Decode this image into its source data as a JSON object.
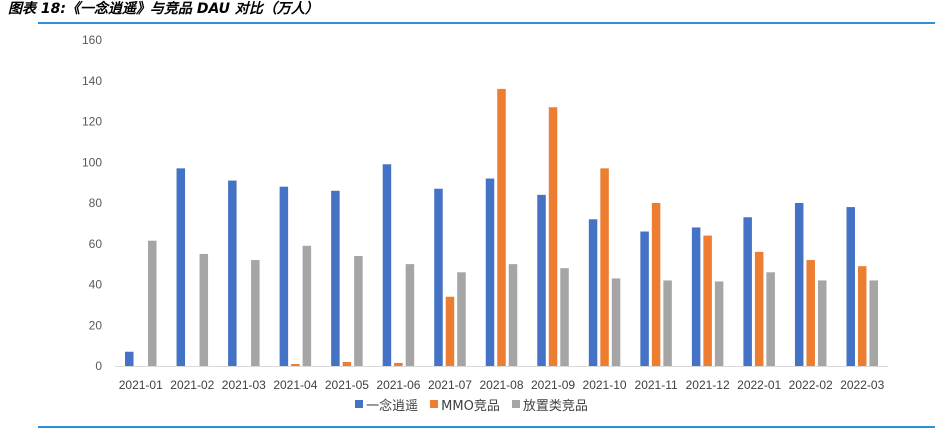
{
  "figure": {
    "title": "图表 18:《一念逍遥》与竞品 DAU 对比（万人）"
  },
  "chart_data": {
    "type": "bar",
    "categories": [
      "2021-01",
      "2021-02",
      "2021-03",
      "2021-04",
      "2021-05",
      "2021-06",
      "2021-07",
      "2021-08",
      "2021-09",
      "2021-10",
      "2021-11",
      "2021-12",
      "2022-01",
      "2022-02",
      "2022-03"
    ],
    "series": [
      {
        "name": "一念逍遥",
        "color": "#4472c4",
        "values": [
          7,
          97,
          91,
          88,
          86,
          99,
          87,
          92,
          84,
          72,
          66,
          68,
          73,
          80,
          78
        ]
      },
      {
        "name": "MMO竞品",
        "color": "#ed7d31",
        "values": [
          0,
          0,
          0,
          1,
          2,
          1.5,
          34,
          136,
          127,
          97,
          80,
          64,
          56,
          52,
          49
        ]
      },
      {
        "name": "放置类竞品",
        "color": "#a5a5a5",
        "values": [
          61.5,
          55,
          52,
          59,
          54,
          50,
          46,
          50,
          48,
          43,
          42,
          41.5,
          46,
          42,
          42
        ]
      }
    ],
    "yticks": [
      0,
      20,
      40,
      60,
      80,
      100,
      120,
      140,
      160
    ],
    "ylim": [
      0,
      160
    ],
    "xlabel": "",
    "ylabel": "",
    "grid": false,
    "legend_position": "bottom"
  }
}
